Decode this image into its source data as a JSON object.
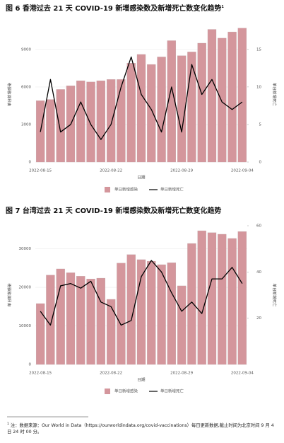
{
  "chart_data": [
    {
      "type": "bar_line",
      "title": "图 6 香港过去 21 天 COVID-19 新增感染数及新增死亡数变化趋势",
      "title_note": "1",
      "categories": [
        "2022-08-15",
        null,
        null,
        null,
        null,
        null,
        null,
        "2022-08-22",
        null,
        null,
        null,
        null,
        null,
        null,
        "2022-08-29",
        null,
        null,
        null,
        null,
        null,
        "2022-09-04"
      ],
      "x_label": "日期",
      "y_label": "单日新增感染",
      "y2_label": "单日新增死亡",
      "series": [
        {
          "name": "单日新增感染",
          "color": "#d4969c",
          "kind": "bar",
          "values": [
            4900,
            5000,
            5800,
            6100,
            6500,
            6400,
            6500,
            6600,
            6600,
            7900,
            8600,
            7800,
            8400,
            9700,
            8500,
            8800,
            9500,
            10600,
            9900,
            10400,
            10700
          ]
        },
        {
          "name": "单日新增死亡",
          "color": "#000000",
          "kind": "line",
          "axis": "y2",
          "values": [
            4,
            11,
            4,
            5,
            8,
            5,
            3,
            5,
            10,
            14,
            9,
            7,
            4,
            10,
            4,
            13,
            9,
            11,
            8,
            7,
            8
          ]
        }
      ],
      "ylim": [
        0,
        10800
      ],
      "yticks": [
        0,
        3000,
        6000,
        9000
      ],
      "y2lim": [
        0,
        18
      ],
      "y2ticks": [
        0,
        5,
        10,
        15
      ],
      "grid": true
    },
    {
      "type": "bar_line",
      "title": "图 7 台湾过去 21 天 COVID-19 新增感染数及新增死亡数变化趋势",
      "categories": [
        "2022-08-15",
        null,
        null,
        null,
        null,
        null,
        null,
        "2022-08-22",
        null,
        null,
        null,
        null,
        null,
        null,
        "2022-08-29",
        null,
        null,
        null,
        null,
        null,
        "2022-09-04"
      ],
      "x_label": "日期",
      "y_label": "单日新增感染",
      "y2_label": "单日新增死亡",
      "series": [
        {
          "name": "单日新增感染",
          "color": "#d4969c",
          "kind": "bar",
          "values": [
            15800,
            23200,
            24800,
            23800,
            22900,
            22200,
            22400,
            16900,
            26300,
            28500,
            27200,
            26800,
            25900,
            26400,
            20400,
            31400,
            34700,
            34200,
            33800,
            32700,
            34500
          ]
        },
        {
          "name": "单日新增死亡",
          "color": "#000000",
          "kind": "line",
          "axis": "y2",
          "values": [
            23,
            17,
            34,
            35,
            33,
            36,
            27,
            25,
            17,
            19,
            38,
            45,
            40,
            31,
            23,
            27,
            22,
            37,
            37,
            42,
            35
          ]
        }
      ],
      "ylim": [
        0,
        36000
      ],
      "yticks": [
        0,
        10000,
        20000,
        30000
      ],
      "y2lim": [
        0,
        60
      ],
      "y2ticks": [
        20,
        40,
        60
      ],
      "grid": true
    }
  ],
  "footnote": {
    "mark": "1",
    "text": "注：数据来源：Our World in Data（https://ourworldindata.org/covid-vaccinations）每日更新数据,截止时间为北京时间 9 月 4 日 24 时 00 分。"
  }
}
